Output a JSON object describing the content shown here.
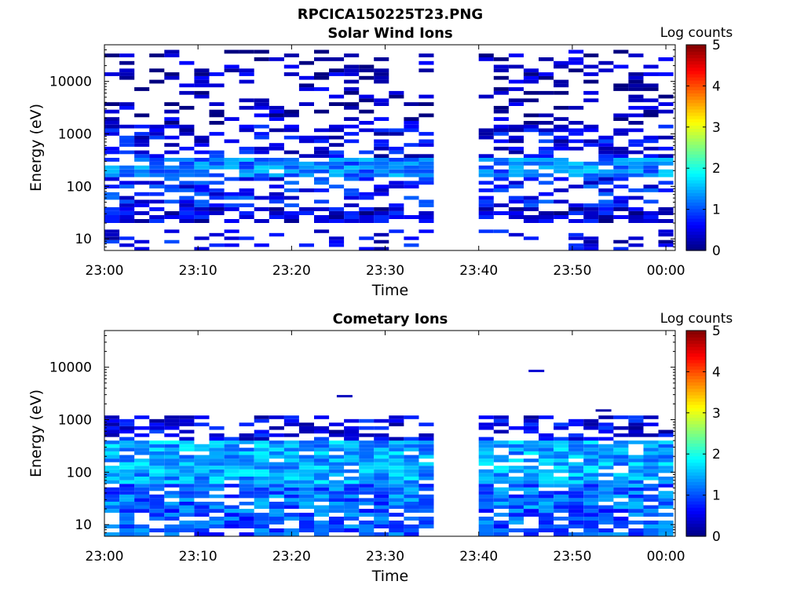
{
  "figure_title": "RPCICA150225T23.PNG",
  "chart_data": [
    {
      "type": "heatmap",
      "title": "Solar Wind Ions",
      "xlabel": "Time",
      "ylabel": "Energy (eV)",
      "x_ticks": [
        "23:00",
        "23:10",
        "23:20",
        "23:30",
        "23:40",
        "23:50",
        "00:00"
      ],
      "y_ticks": [
        "10",
        "100",
        "1000",
        "10000"
      ],
      "y_scale": "log",
      "ylim": [
        6,
        50000
      ],
      "xlim": [
        "23:00",
        "00:01"
      ],
      "colorbar": {
        "label": "Log counts",
        "range": [
          0,
          5
        ],
        "ticks": [
          "0",
          "1",
          "2",
          "3",
          "4",
          "5"
        ],
        "colormap": "jet"
      },
      "time_bins_min": 38,
      "bin_width_min": 1.6,
      "data_gap": [
        "23:36",
        "23:39"
      ],
      "energy_bands": [
        {
          "e_min": 6,
          "e_max": 15,
          "log_counts": 0.5,
          "coverage": "sparse"
        },
        {
          "e_min": 20,
          "e_max": 40,
          "log_counts": 0.4,
          "coverage": "frequent"
        },
        {
          "e_min": 40,
          "e_max": 150,
          "log_counts": 0.7,
          "coverage": "partial"
        },
        {
          "e_min": 150,
          "e_max": 350,
          "log_counts": 1.2,
          "coverage": "dense"
        },
        {
          "e_min": 350,
          "e_max": 1500,
          "log_counts": 0.5,
          "coverage": "partial"
        },
        {
          "e_min": 1500,
          "e_max": 40000,
          "log_counts": 0.2,
          "coverage": "sparse"
        }
      ]
    },
    {
      "type": "heatmap",
      "title": "Cometary Ions",
      "xlabel": "Time",
      "ylabel": "Energy (eV)",
      "x_ticks": [
        "23:00",
        "23:10",
        "23:20",
        "23:30",
        "23:40",
        "23:50",
        "00:00"
      ],
      "y_ticks": [
        "10",
        "100",
        "1000",
        "10000"
      ],
      "y_scale": "log",
      "ylim": [
        6,
        50000
      ],
      "xlim": [
        "23:00",
        "00:01"
      ],
      "colorbar": {
        "label": "Log counts",
        "range": [
          0,
          5
        ],
        "ticks": [
          "0",
          "1",
          "2",
          "3",
          "4",
          "5"
        ],
        "colormap": "jet"
      },
      "time_bins_min": 38,
      "bin_width_min": 1.6,
      "data_gap": [
        "23:36",
        "23:39"
      ],
      "energy_bands": [
        {
          "e_min": 6,
          "e_max": 20,
          "log_counts": 1.0,
          "coverage": "frequent"
        },
        {
          "e_min": 20,
          "e_max": 60,
          "log_counts": 1.1,
          "coverage": "dense"
        },
        {
          "e_min": 60,
          "e_max": 400,
          "log_counts": 1.4,
          "coverage": "dense"
        },
        {
          "e_min": 400,
          "e_max": 1200,
          "log_counts": 0.5,
          "coverage": "partial"
        }
      ],
      "isolated_points": [
        {
          "time": "23:25:40",
          "energy": 2800,
          "log_counts": 0.3
        },
        {
          "time": "23:46:10",
          "energy": 8500,
          "log_counts": 0.4
        },
        {
          "time": "23:53:20",
          "energy": 1500,
          "log_counts": 0.2
        }
      ]
    }
  ]
}
